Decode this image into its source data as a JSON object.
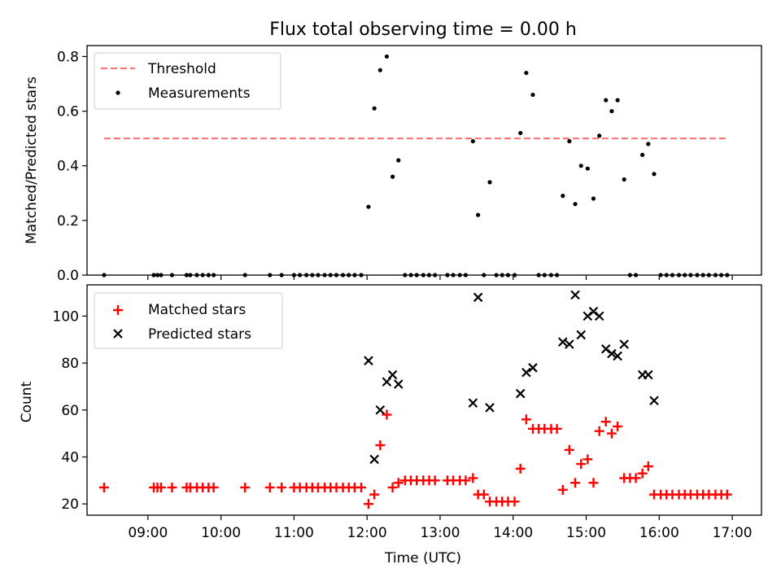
{
  "figure": {
    "title": "Flux total observing time = 0.00 h"
  },
  "chart_data": [
    {
      "type": "scatter",
      "ylabel": "Matched/Predicted stars",
      "xlim": [
        8.1667,
        17.4
      ],
      "ylim": [
        0,
        0.84
      ],
      "yticks": [
        0.0,
        0.2,
        0.4,
        0.6,
        0.8
      ],
      "ytick_labels": [
        "0.0",
        "0.2",
        "0.4",
        "0.6",
        "0.8"
      ],
      "grid": false,
      "legend_position": "upper-left",
      "threshold": {
        "name": "Threshold",
        "value": 0.5,
        "x_range": [
          8.4,
          16.95
        ],
        "color": "#ff7070",
        "style": "dashed"
      },
      "series": [
        {
          "name": "Measurements",
          "color": "#000000",
          "marker": "dot",
          "points": [
            [
              8.4,
              0.0
            ],
            [
              9.08,
              0.0
            ],
            [
              9.13,
              0.0
            ],
            [
              9.18,
              0.0
            ],
            [
              9.33,
              0.0
            ],
            [
              9.53,
              0.0
            ],
            [
              9.58,
              0.0
            ],
            [
              9.67,
              0.0
            ],
            [
              9.75,
              0.0
            ],
            [
              9.83,
              0.0
            ],
            [
              9.9,
              0.0
            ],
            [
              10.33,
              0.0
            ],
            [
              10.67,
              0.0
            ],
            [
              10.83,
              0.0
            ],
            [
              11.0,
              0.0
            ],
            [
              11.08,
              0.0
            ],
            [
              11.17,
              0.0
            ],
            [
              11.25,
              0.0
            ],
            [
              11.33,
              0.0
            ],
            [
              11.42,
              0.0
            ],
            [
              11.5,
              0.0
            ],
            [
              11.58,
              0.0
            ],
            [
              11.67,
              0.0
            ],
            [
              11.75,
              0.0
            ],
            [
              11.83,
              0.0
            ],
            [
              11.92,
              0.0
            ],
            [
              12.02,
              0.25
            ],
            [
              12.1,
              0.61
            ],
            [
              12.18,
              0.75
            ],
            [
              12.27,
              0.8
            ],
            [
              12.35,
              0.36
            ],
            [
              12.43,
              0.42
            ],
            [
              12.52,
              0.0
            ],
            [
              12.6,
              0.0
            ],
            [
              12.68,
              0.0
            ],
            [
              12.77,
              0.0
            ],
            [
              12.85,
              0.0
            ],
            [
              12.93,
              0.0
            ],
            [
              13.1,
              0.0
            ],
            [
              13.18,
              0.0
            ],
            [
              13.27,
              0.0
            ],
            [
              13.35,
              0.0
            ],
            [
              13.45,
              0.49
            ],
            [
              13.52,
              0.22
            ],
            [
              13.6,
              0.0
            ],
            [
              13.68,
              0.34
            ],
            [
              13.77,
              0.0
            ],
            [
              13.85,
              0.0
            ],
            [
              13.93,
              0.0
            ],
            [
              14.02,
              0.0
            ],
            [
              14.1,
              0.52
            ],
            [
              14.18,
              0.74
            ],
            [
              14.27,
              0.66
            ],
            [
              14.35,
              0.0
            ],
            [
              14.43,
              0.0
            ],
            [
              14.52,
              0.0
            ],
            [
              14.6,
              0.0
            ],
            [
              14.68,
              0.29
            ],
            [
              14.77,
              0.49
            ],
            [
              14.85,
              0.26
            ],
            [
              14.93,
              0.4
            ],
            [
              15.02,
              0.39
            ],
            [
              15.1,
              0.28
            ],
            [
              15.18,
              0.51
            ],
            [
              15.27,
              0.64
            ],
            [
              15.35,
              0.6
            ],
            [
              15.43,
              0.64
            ],
            [
              15.52,
              0.35
            ],
            [
              15.6,
              0.0
            ],
            [
              15.68,
              0.0
            ],
            [
              15.77,
              0.44
            ],
            [
              15.85,
              0.48
            ],
            [
              15.93,
              0.37
            ],
            [
              16.02,
              0.0
            ],
            [
              16.1,
              0.0
            ],
            [
              16.18,
              0.0
            ],
            [
              16.27,
              0.0
            ],
            [
              16.35,
              0.0
            ],
            [
              16.43,
              0.0
            ],
            [
              16.52,
              0.0
            ],
            [
              16.6,
              0.0
            ],
            [
              16.68,
              0.0
            ],
            [
              16.77,
              0.0
            ],
            [
              16.85,
              0.0
            ],
            [
              16.93,
              0.0
            ]
          ]
        }
      ]
    },
    {
      "type": "scatter",
      "xlabel": "Time (UTC)",
      "ylabel": "Count",
      "xlim": [
        8.1667,
        17.4
      ],
      "ylim": [
        15.2,
        113.3
      ],
      "xticks": [
        9,
        10,
        11,
        12,
        13,
        14,
        15,
        16,
        17
      ],
      "xtick_labels": [
        "09:00",
        "10:00",
        "11:00",
        "12:00",
        "13:00",
        "14:00",
        "15:00",
        "16:00",
        "17:00"
      ],
      "yticks": [
        20,
        40,
        60,
        80,
        100
      ],
      "ytick_labels": [
        "20",
        "40",
        "60",
        "80",
        "100"
      ],
      "grid": false,
      "legend_position": "upper-left",
      "series": [
        {
          "name": "Matched stars",
          "color": "#ff0000",
          "marker": "plus",
          "points": [
            [
              8.4,
              27
            ],
            [
              9.08,
              27
            ],
            [
              9.13,
              27
            ],
            [
              9.18,
              27
            ],
            [
              9.33,
              27
            ],
            [
              9.53,
              27
            ],
            [
              9.58,
              27
            ],
            [
              9.67,
              27
            ],
            [
              9.75,
              27
            ],
            [
              9.83,
              27
            ],
            [
              9.9,
              27
            ],
            [
              10.33,
              27
            ],
            [
              10.67,
              27
            ],
            [
              10.83,
              27
            ],
            [
              11.0,
              27
            ],
            [
              11.08,
              27
            ],
            [
              11.17,
              27
            ],
            [
              11.25,
              27
            ],
            [
              11.33,
              27
            ],
            [
              11.42,
              27
            ],
            [
              11.5,
              27
            ],
            [
              11.58,
              27
            ],
            [
              11.67,
              27
            ],
            [
              11.75,
              27
            ],
            [
              11.83,
              27
            ],
            [
              11.92,
              27
            ],
            [
              12.02,
              20
            ],
            [
              12.1,
              24
            ],
            [
              12.18,
              45
            ],
            [
              12.27,
              58
            ],
            [
              12.35,
              27
            ],
            [
              12.43,
              29
            ],
            [
              12.52,
              30
            ],
            [
              12.6,
              30
            ],
            [
              12.68,
              30
            ],
            [
              12.77,
              30
            ],
            [
              12.85,
              30
            ],
            [
              12.93,
              30
            ],
            [
              13.1,
              30
            ],
            [
              13.18,
              30
            ],
            [
              13.27,
              30
            ],
            [
              13.35,
              30
            ],
            [
              13.45,
              31
            ],
            [
              13.52,
              24
            ],
            [
              13.6,
              24
            ],
            [
              13.68,
              21
            ],
            [
              13.77,
              21
            ],
            [
              13.85,
              21
            ],
            [
              13.93,
              21
            ],
            [
              14.02,
              21
            ],
            [
              14.1,
              35
            ],
            [
              14.18,
              56
            ],
            [
              14.27,
              52
            ],
            [
              14.35,
              52
            ],
            [
              14.43,
              52
            ],
            [
              14.52,
              52
            ],
            [
              14.6,
              52
            ],
            [
              14.68,
              26
            ],
            [
              14.77,
              43
            ],
            [
              14.85,
              29
            ],
            [
              14.93,
              37
            ],
            [
              15.02,
              39
            ],
            [
              15.1,
              29
            ],
            [
              15.18,
              51
            ],
            [
              15.27,
              55
            ],
            [
              15.35,
              50
            ],
            [
              15.43,
              53
            ],
            [
              15.52,
              31
            ],
            [
              15.6,
              31
            ],
            [
              15.68,
              31
            ],
            [
              15.77,
              33
            ],
            [
              15.85,
              36
            ],
            [
              15.93,
              24
            ],
            [
              16.02,
              24
            ],
            [
              16.1,
              24
            ],
            [
              16.18,
              24
            ],
            [
              16.27,
              24
            ],
            [
              16.35,
              24
            ],
            [
              16.43,
              24
            ],
            [
              16.52,
              24
            ],
            [
              16.6,
              24
            ],
            [
              16.68,
              24
            ],
            [
              16.77,
              24
            ],
            [
              16.85,
              24
            ],
            [
              16.93,
              24
            ]
          ]
        },
        {
          "name": "Predicted stars",
          "color": "#000000",
          "marker": "x",
          "points": [
            [
              12.02,
              81
            ],
            [
              12.1,
              39
            ],
            [
              12.18,
              60
            ],
            [
              12.27,
              72
            ],
            [
              12.35,
              75
            ],
            [
              12.43,
              71
            ],
            [
              13.45,
              63
            ],
            [
              13.52,
              108
            ],
            [
              13.68,
              61
            ],
            [
              14.1,
              67
            ],
            [
              14.18,
              76
            ],
            [
              14.27,
              78
            ],
            [
              14.68,
              89
            ],
            [
              14.77,
              88
            ],
            [
              14.85,
              109
            ],
            [
              14.93,
              92
            ],
            [
              15.02,
              100
            ],
            [
              15.1,
              102
            ],
            [
              15.18,
              100
            ],
            [
              15.27,
              86
            ],
            [
              15.35,
              84
            ],
            [
              15.43,
              83
            ],
            [
              15.52,
              88
            ],
            [
              15.77,
              75
            ],
            [
              15.85,
              75
            ],
            [
              15.93,
              64
            ]
          ]
        }
      ]
    }
  ]
}
